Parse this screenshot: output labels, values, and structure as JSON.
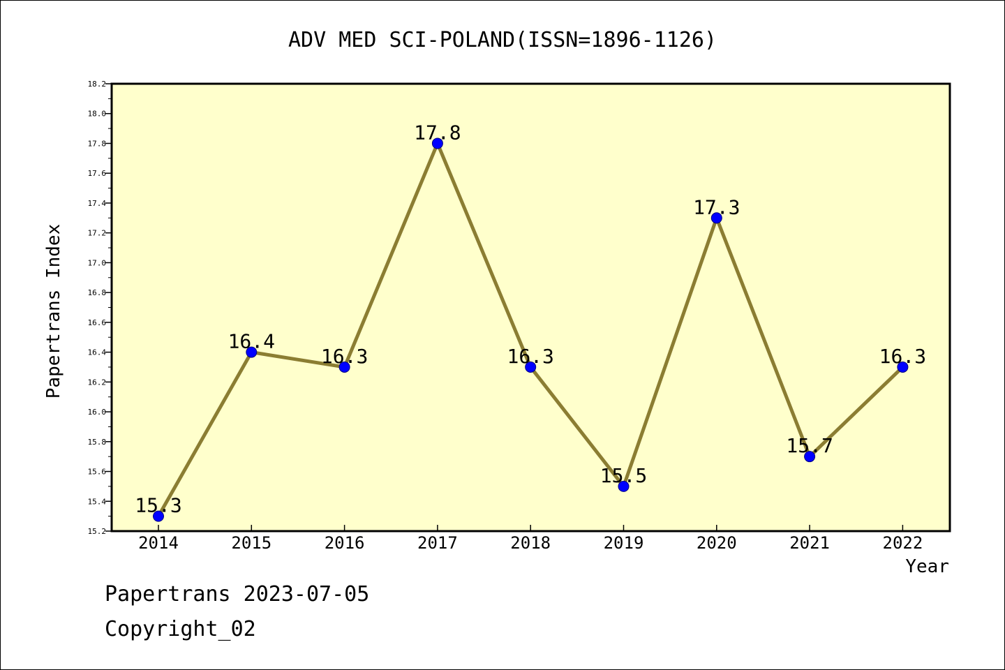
{
  "chart_data": {
    "type": "line",
    "title": "ADV MED SCI-POLAND(ISSN=1896-1126)",
    "xlabel": "Year",
    "ylabel": "Papertrans Index",
    "categories": [
      "2014",
      "2015",
      "2016",
      "2017",
      "2018",
      "2019",
      "2020",
      "2021",
      "2022"
    ],
    "series": [
      {
        "values": [
          15.3,
          16.4,
          16.3,
          17.8,
          16.3,
          15.5,
          17.3,
          15.7,
          16.3
        ],
        "labels": [
          "15.3",
          "16.4",
          "16.3",
          "17.8",
          "16.3",
          "15.5",
          "17.3",
          "15.7",
          "16.3"
        ]
      }
    ],
    "ylim": [
      15.2,
      18.2
    ],
    "yticks": [
      "15.2",
      "15.4",
      "15.6",
      "15.8",
      "16.0",
      "16.2",
      "16.4",
      "16.6",
      "16.8",
      "17.0",
      "17.2",
      "17.4",
      "17.6",
      "17.8",
      "18.0",
      "18.2"
    ],
    "grid": false,
    "colors": {
      "plot_background": "#ffffcc",
      "line": "#8b7d32",
      "marker": "#0000ff",
      "marker_edge": "#000080"
    }
  },
  "footer": {
    "line1": "Papertrans 2023-07-05",
    "line2": "Copyright_02"
  }
}
